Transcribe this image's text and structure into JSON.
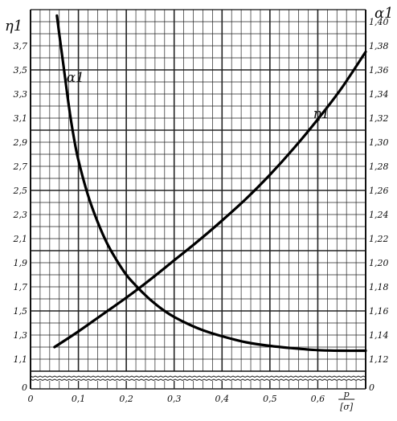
{
  "chart_data": {
    "type": "line",
    "title": "",
    "xlabel": "p/[σ]",
    "x_ticks": [
      "0",
      "0,1",
      "0,2",
      "0,3",
      "0,4",
      "0,5",
      "0,6"
    ],
    "xlim": [
      0,
      0.7
    ],
    "left_axis": {
      "label": "η1",
      "ylim": [
        1.0,
        4.0
      ],
      "tick_values": [
        1.1,
        1.3,
        1.5,
        1.7,
        1.9,
        2.1,
        2.3,
        2.5,
        2.7,
        2.9,
        3.1,
        3.3,
        3.5,
        3.7
      ],
      "tick_labels": [
        "1,1",
        "1,3",
        "1,5",
        "1,7",
        "1,9",
        "2,1",
        "2,3",
        "2,5",
        "2,7",
        "2,9",
        "3,1",
        "3,3",
        "3,5",
        "3,7"
      ],
      "axis_break_label": "0"
    },
    "right_axis": {
      "label": "α1",
      "ylim": [
        1.11,
        1.41
      ],
      "tick_values": [
        1.12,
        1.14,
        1.16,
        1.18,
        1.2,
        1.22,
        1.24,
        1.26,
        1.28,
        1.3,
        1.32,
        1.34,
        1.36,
        1.38,
        1.4
      ],
      "tick_labels": [
        "1,12",
        "1,14",
        "1,16",
        "1,18",
        "1,20",
        "1,22",
        "1,24",
        "1,26",
        "1,28",
        "1,30",
        "1,32",
        "1,34",
        "1,36",
        "1,38",
        "1,40"
      ],
      "axis_break_label": "0"
    },
    "series": [
      {
        "name": "α1",
        "axis": "right",
        "x": [
          0.055,
          0.06,
          0.07,
          0.08,
          0.09,
          0.1,
          0.12,
          0.14,
          0.16,
          0.18,
          0.2,
          0.22,
          0.24,
          0.26,
          0.28,
          0.3,
          0.33,
          0.36,
          0.4,
          0.45,
          0.5,
          0.55,
          0.6,
          0.65,
          0.7
        ],
        "y": [
          1.405,
          1.39,
          1.36,
          1.33,
          1.305,
          1.285,
          1.256,
          1.234,
          1.216,
          1.202,
          1.19,
          1.181,
          1.173,
          1.166,
          1.16,
          1.155,
          1.149,
          1.144,
          1.139,
          1.134,
          1.131,
          1.129,
          1.1275,
          1.127,
          1.127
        ]
      },
      {
        "name": "η1",
        "axis": "left",
        "x": [
          0.05,
          0.1,
          0.15,
          0.2,
          0.25,
          0.3,
          0.35,
          0.4,
          0.45,
          0.5,
          0.55,
          0.6,
          0.65,
          0.7
        ],
        "y": [
          1.2,
          1.33,
          1.47,
          1.61,
          1.76,
          1.92,
          2.08,
          2.25,
          2.43,
          2.63,
          2.85,
          3.09,
          3.35,
          3.65
        ]
      }
    ],
    "grid": true,
    "legend": "none (curves labelled directly)"
  }
}
